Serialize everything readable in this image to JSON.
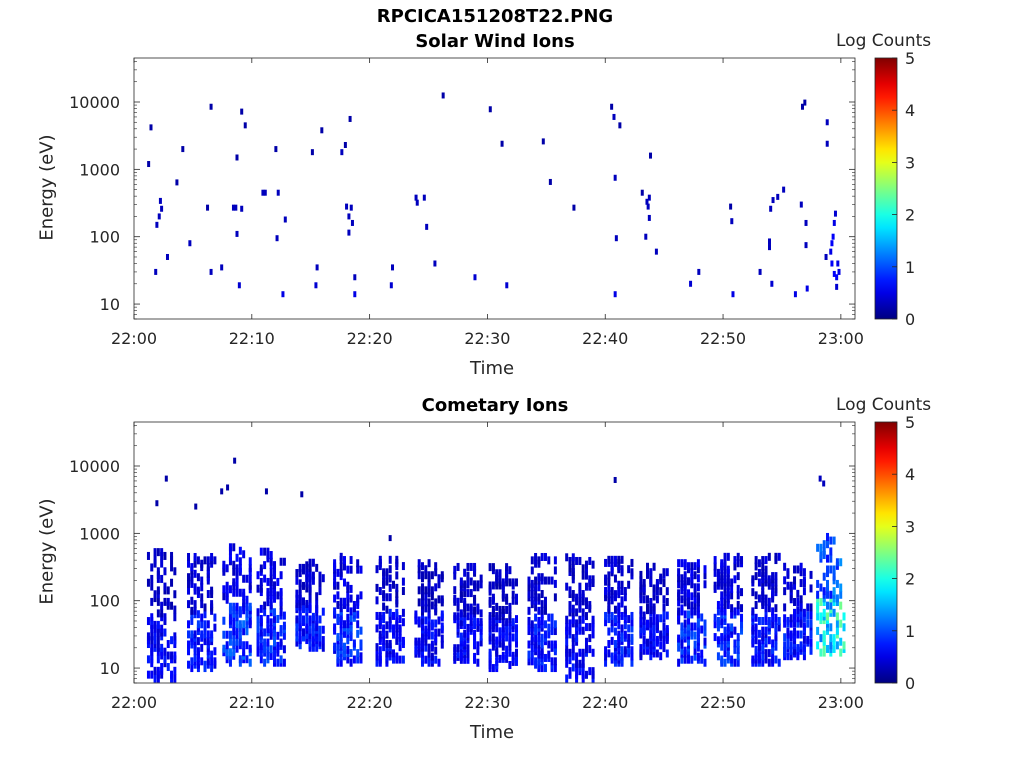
{
  "figure_title": "RPCICA151208T22.PNG",
  "chart_data": [
    {
      "type": "heatmap",
      "title": "Solar Wind Ions",
      "xlabel": "Time",
      "ylabel": "Energy (eV)",
      "x_ticks": [
        "22:00",
        "22:10",
        "22:20",
        "22:30",
        "22:40",
        "22:50",
        "23:00"
      ],
      "y_ticks": [
        "10",
        "100",
        "1000",
        "10000"
      ],
      "y_scale": "log",
      "ylim": [
        6,
        45000
      ],
      "colorbar": {
        "label": "Log Counts",
        "ticks": [
          "0",
          "1",
          "2",
          "3",
          "4",
          "5"
        ],
        "range": [
          0,
          5
        ],
        "colormap": "jet"
      },
      "points": [
        [
          1.8,
          30,
          0.3
        ],
        [
          1.2,
          1200,
          0.2
        ],
        [
          1.4,
          4200,
          0.2
        ],
        [
          1.9,
          150,
          0.3
        ],
        [
          2.1,
          200,
          0.3
        ],
        [
          2.3,
          260,
          0.3
        ],
        [
          2.2,
          340,
          0.3
        ],
        [
          2.8,
          50,
          0.3
        ],
        [
          3.6,
          640,
          0.2
        ],
        [
          4.1,
          2000,
          0.2
        ],
        [
          4.7,
          80,
          0.3
        ],
        [
          6.2,
          270,
          0.2
        ],
        [
          6.5,
          30,
          0.3
        ],
        [
          6.5,
          8500,
          0.2
        ],
        [
          7.4,
          35,
          0.3
        ],
        [
          8.4,
          270,
          0.3
        ],
        [
          8.6,
          270,
          0.3
        ],
        [
          8.7,
          1500,
          0.2
        ],
        [
          8.9,
          19,
          0.4
        ],
        [
          8.7,
          110,
          0.3
        ],
        [
          9.1,
          7200,
          0.2
        ],
        [
          9.4,
          4500,
          0.2
        ],
        [
          9.1,
          260,
          0.3
        ],
        [
          10.9,
          450,
          0.3
        ],
        [
          11.1,
          450,
          0.3
        ],
        [
          12.0,
          2000,
          0.2
        ],
        [
          12.1,
          95,
          0.3
        ],
        [
          12.2,
          450,
          0.3
        ],
        [
          12.6,
          14,
          0.5
        ],
        [
          12.8,
          180,
          0.3
        ],
        [
          15.1,
          1800,
          0.2
        ],
        [
          15.4,
          19,
          0.4
        ],
        [
          15.5,
          35,
          0.3
        ],
        [
          15.9,
          3800,
          0.2
        ],
        [
          17.6,
          1800,
          0.3
        ],
        [
          17.9,
          2300,
          0.2
        ],
        [
          18.0,
          280,
          0.3
        ],
        [
          18.2,
          200,
          0.3
        ],
        [
          18.2,
          115,
          0.3
        ],
        [
          18.3,
          5600,
          0.2
        ],
        [
          18.4,
          270,
          0.3
        ],
        [
          18.5,
          160,
          0.3
        ],
        [
          18.7,
          25,
          0.3
        ],
        [
          18.7,
          14,
          0.5
        ],
        [
          21.8,
          19,
          0.4
        ],
        [
          21.9,
          35,
          0.3
        ],
        [
          23.9,
          380,
          0.3
        ],
        [
          24.0,
          320,
          0.3
        ],
        [
          24.6,
          380,
          0.3
        ],
        [
          24.8,
          140,
          0.3
        ],
        [
          25.5,
          40,
          0.3
        ],
        [
          26.2,
          12500,
          0.2
        ],
        [
          28.9,
          25,
          0.4
        ],
        [
          30.2,
          7800,
          0.2
        ],
        [
          31.2,
          2400,
          0.2
        ],
        [
          31.6,
          19,
          0.4
        ],
        [
          34.7,
          2600,
          0.2
        ],
        [
          35.3,
          650,
          0.2
        ],
        [
          37.3,
          270,
          0.2
        ],
        [
          40.5,
          8500,
          0.2
        ],
        [
          40.7,
          6000,
          0.3
        ],
        [
          40.8,
          750,
          0.3
        ],
        [
          40.9,
          95,
          0.3
        ],
        [
          40.8,
          14,
          0.5
        ],
        [
          41.2,
          4500,
          0.2
        ],
        [
          43.1,
          450,
          0.2
        ],
        [
          43.4,
          100,
          0.3
        ],
        [
          43.5,
          330,
          0.3
        ],
        [
          43.7,
          380,
          0.3
        ],
        [
          43.7,
          190,
          0.3
        ],
        [
          43.8,
          1600,
          0.2
        ],
        [
          43.6,
          280,
          0.3
        ],
        [
          44.3,
          60,
          0.3
        ],
        [
          47.2,
          20,
          0.4
        ],
        [
          47.9,
          30,
          0.3
        ],
        [
          50.6,
          280,
          0.2
        ],
        [
          50.7,
          170,
          0.3
        ],
        [
          50.8,
          14,
          0.5
        ],
        [
          53.1,
          30,
          0.3
        ],
        [
          53.9,
          85,
          0.3
        ],
        [
          53.9,
          70,
          0.3
        ],
        [
          54.0,
          260,
          0.3
        ],
        [
          54.2,
          350,
          0.3
        ],
        [
          54.1,
          20,
          0.4
        ],
        [
          54.6,
          390,
          0.3
        ],
        [
          55.1,
          500,
          0.3
        ],
        [
          56.6,
          300,
          0.3
        ],
        [
          56.7,
          8500,
          0.2
        ],
        [
          56.9,
          9800,
          0.2
        ],
        [
          57.0,
          75,
          0.3
        ],
        [
          57.0,
          160,
          0.3
        ],
        [
          56.1,
          14,
          0.5
        ],
        [
          57.1,
          17,
          0.5
        ],
        [
          58.7,
          50,
          0.3
        ],
        [
          58.8,
          5000,
          0.3
        ],
        [
          58.8,
          2400,
          0.3
        ],
        [
          59.1,
          60,
          0.5
        ],
        [
          59.2,
          40,
          0.6
        ],
        [
          59.3,
          100,
          0.6
        ],
        [
          59.4,
          160,
          0.5
        ],
        [
          59.5,
          220,
          0.4
        ],
        [
          59.6,
          25,
          0.6
        ],
        [
          59.7,
          40,
          0.5
        ],
        [
          59.4,
          28,
          0.6
        ],
        [
          59.2,
          80,
          0.6
        ],
        [
          59.6,
          18,
          0.4
        ],
        [
          59.8,
          30,
          0.5
        ]
      ]
    },
    {
      "type": "heatmap",
      "title": "Cometary Ions",
      "xlabel": "Time",
      "ylabel": "Energy (eV)",
      "x_ticks": [
        "22:00",
        "22:10",
        "22:20",
        "22:30",
        "22:40",
        "22:50",
        "23:00"
      ],
      "y_ticks": [
        "10",
        "100",
        "1000",
        "10000"
      ],
      "y_scale": "log",
      "ylim": [
        6,
        45000
      ],
      "colorbar": {
        "label": "Log Counts",
        "ticks": [
          "0",
          "1",
          "2",
          "3",
          "4",
          "5"
        ],
        "range": [
          0,
          5
        ],
        "colormap": "jet"
      },
      "points": [
        [
          1.9,
          2800,
          0.2
        ],
        [
          2.7,
          6500,
          0.2
        ],
        [
          5.2,
          2500,
          0.2
        ],
        [
          7.4,
          4200,
          0.2
        ],
        [
          7.9,
          4800,
          0.2
        ],
        [
          8.5,
          12000,
          0.2
        ],
        [
          11.2,
          4200,
          0.2
        ],
        [
          14.2,
          3800,
          0.2
        ],
        [
          21.7,
          850,
          0.2
        ],
        [
          40.8,
          6200,
          0.2
        ],
        [
          58.2,
          6500,
          0.3
        ],
        [
          58.5,
          5500,
          0.3
        ]
      ],
      "bursts": [
        {
          "t": 2.2,
          "lo": 7,
          "hi": 600,
          "level": 0.6
        },
        {
          "t": 5.6,
          "lo": 10,
          "hi": 500,
          "level": 0.7
        },
        {
          "t": 8.6,
          "lo": 12,
          "hi": 700,
          "level": 0.9
        },
        {
          "t": 11.5,
          "lo": 12,
          "hi": 600,
          "level": 0.8
        },
        {
          "t": 14.8,
          "lo": 20,
          "hi": 400,
          "level": 0.7
        },
        {
          "t": 18.0,
          "lo": 12,
          "hi": 500,
          "level": 0.8
        },
        {
          "t": 21.6,
          "lo": 12,
          "hi": 450,
          "level": 0.6
        },
        {
          "t": 24.9,
          "lo": 12,
          "hi": 400,
          "level": 0.6
        },
        {
          "t": 28.2,
          "lo": 12,
          "hi": 350,
          "level": 0.6
        },
        {
          "t": 31.2,
          "lo": 10,
          "hi": 350,
          "level": 0.6
        },
        {
          "t": 34.5,
          "lo": 10,
          "hi": 500,
          "level": 0.7
        },
        {
          "t": 37.7,
          "lo": 7,
          "hi": 500,
          "level": 0.6
        },
        {
          "t": 41.0,
          "lo": 12,
          "hi": 450,
          "level": 0.7
        },
        {
          "t": 44.0,
          "lo": 15,
          "hi": 350,
          "level": 0.6
        },
        {
          "t": 47.2,
          "lo": 12,
          "hi": 400,
          "level": 0.8
        },
        {
          "t": 50.3,
          "lo": 12,
          "hi": 500,
          "level": 0.8
        },
        {
          "t": 53.5,
          "lo": 12,
          "hi": 500,
          "level": 0.7
        },
        {
          "t": 56.2,
          "lo": 15,
          "hi": 350,
          "level": 0.7
        },
        {
          "t": 59.0,
          "lo": 15,
          "hi": 1000,
          "level": 1.9
        }
      ]
    }
  ]
}
